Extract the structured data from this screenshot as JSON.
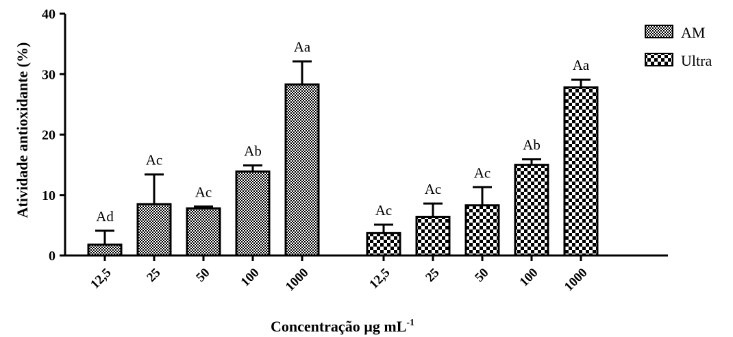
{
  "chart_data": {
    "type": "bar",
    "ylabel": "Atividade antioxidante (%)",
    "xlabel_prefix": "Concentração µg mL",
    "xlabel_sup": "-1",
    "ylim": [
      0,
      40
    ],
    "yticks": [
      "0",
      "10",
      "20",
      "30",
      "40"
    ],
    "categories": [
      "12,5",
      "25",
      "50",
      "100",
      "1000"
    ],
    "series": [
      {
        "name": "AM",
        "pattern": "fine-check",
        "values": [
          1.8,
          8.5,
          7.8,
          13.9,
          28.3
        ],
        "errors": [
          2.3,
          4.9,
          0.3,
          1.0,
          3.8
        ],
        "labels": [
          "Ad",
          "Ac",
          "Ac",
          "Ab",
          "Aa"
        ]
      },
      {
        "name": "Ultra",
        "pattern": "coarse-check",
        "values": [
          3.7,
          6.4,
          8.3,
          15.0,
          27.8
        ],
        "errors": [
          1.4,
          2.2,
          3.0,
          0.9,
          1.3
        ],
        "labels": [
          "Ac",
          "Ac",
          "Ac",
          "Ab",
          "Aa"
        ]
      }
    ],
    "legend_position": "top-right",
    "grid": false
  }
}
